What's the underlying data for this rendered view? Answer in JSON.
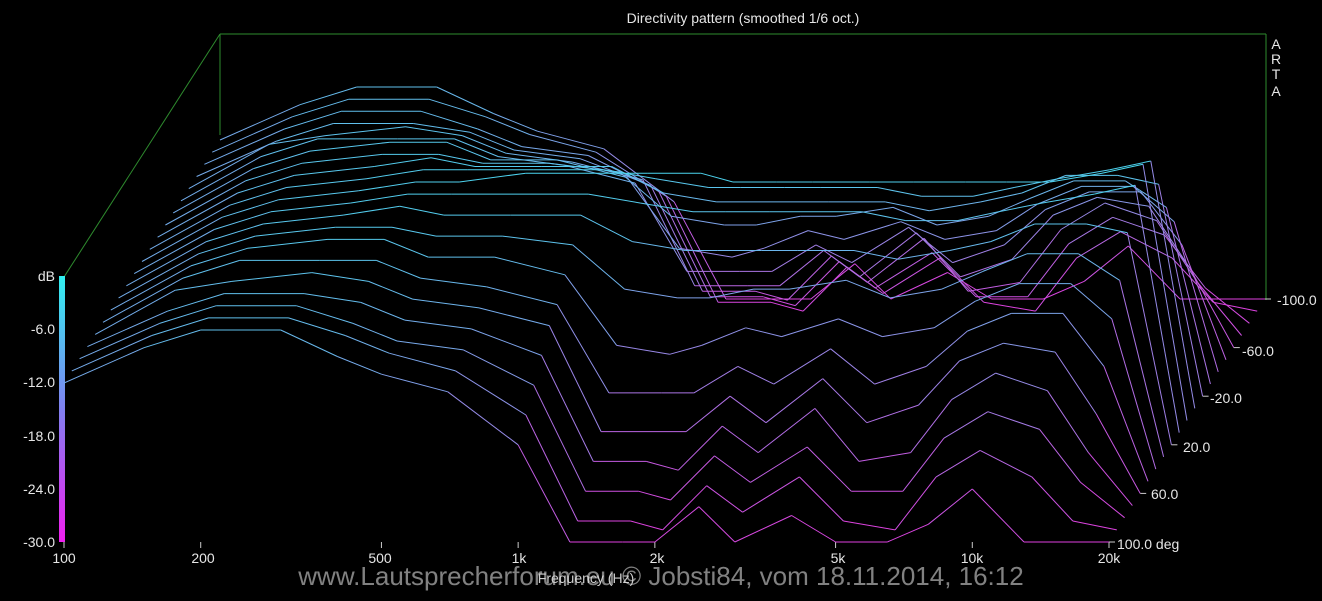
{
  "chart_data": {
    "type": "line",
    "title": "Directivity pattern (smoothed 1/6 oct.)",
    "xlabel": "Frequency (Hz)",
    "ylabel": "dB",
    "zlabel": "deg",
    "brand": [
      "A",
      "R",
      "T",
      "A"
    ],
    "x_scale": "log",
    "xlim": [
      100,
      20000
    ],
    "ylim": [
      -30,
      0
    ],
    "zlim": [
      -100,
      100
    ],
    "x_ticks": [
      "100",
      "200",
      "500",
      "1k",
      "2k",
      "5k",
      "10k",
      "20k"
    ],
    "x_tick_values": [
      100,
      200,
      500,
      1000,
      2000,
      5000,
      10000,
      20000
    ],
    "y_ticks": [
      "dB",
      "-6.0",
      "-12.0",
      "-18.0",
      "-24.0",
      "-30.0"
    ],
    "y_tick_values": [
      0,
      -6,
      -12,
      -18,
      -24,
      -30
    ],
    "z_ticks": [
      "-100.0",
      "-60.0",
      "-20.0",
      "20.0",
      "60.0",
      "100.0 deg"
    ],
    "z_tick_values": [
      -100,
      -60,
      -20,
      20,
      60,
      100
    ],
    "colors": {
      "background": "#000000",
      "frame": "#2e8b2e",
      "high": "#40e0f0",
      "low": "#e040e0",
      "text": "#e6e6e6"
    },
    "freqs": [
      100,
      150,
      200,
      300,
      400,
      500,
      700,
      1000,
      1300,
      1700,
      2000,
      2500,
      3000,
      4000,
      5000,
      6500,
      8000,
      10000,
      13000,
      16000,
      20000
    ],
    "series": [
      {
        "angle": 100,
        "values": [
          -12,
          -8,
          -6,
          -6,
          -9,
          -11,
          -13,
          -19,
          -30,
          -30,
          -30,
          -26,
          -30,
          -27,
          -30,
          -30,
          -28,
          -24,
          -30,
          -30,
          -30
        ]
      },
      {
        "angle": 90,
        "values": [
          -12,
          -8,
          -6,
          -6,
          -8,
          -10,
          -12,
          -17,
          -29,
          -29,
          -30,
          -25,
          -28,
          -24,
          -29,
          -30,
          -24,
          -21,
          -24,
          -29,
          -30
        ]
      },
      {
        "angle": 80,
        "values": [
          -12,
          -8,
          -6,
          -6,
          -8,
          -10,
          -11,
          -15,
          -27,
          -27,
          -28,
          -23,
          -26,
          -22,
          -27,
          -27,
          -21,
          -18,
          -20,
          -26,
          -30
        ]
      },
      {
        "angle": 70,
        "values": [
          -12,
          -8,
          -6,
          -6,
          -7,
          -9,
          -10,
          -13,
          -25,
          -25,
          -26,
          -21,
          -24,
          -19,
          -25,
          -24,
          -18,
          -15,
          -17,
          -24,
          -30
        ]
      },
      {
        "angle": 60,
        "values": [
          -12,
          -7,
          -6,
          -5,
          -6,
          -8,
          -9,
          -11,
          -23,
          -23,
          -23,
          -19,
          -22,
          -17,
          -22,
          -20,
          -15,
          -13,
          -14,
          -21,
          -30
        ]
      },
      {
        "angle": 50,
        "values": [
          -12,
          -7,
          -5,
          -5,
          -5,
          -7,
          -8,
          -10,
          -20,
          -20,
          -20,
          -17,
          -19,
          -15,
          -19,
          -17,
          -13,
          -11,
          -11,
          -17,
          -30
        ]
      },
      {
        "angle": 40,
        "values": [
          -12,
          -7,
          -5,
          -4,
          -4,
          -6,
          -6,
          -8,
          -16,
          -17,
          -16,
          -14,
          -15,
          -13,
          -15,
          -14,
          -11,
          -9,
          -9,
          -13,
          -30
        ]
      },
      {
        "angle": 30,
        "values": [
          -12,
          -7,
          -5,
          -4,
          -4,
          -5,
          -5,
          -6,
          -11,
          -12,
          -12,
          -11,
          -11,
          -10,
          -12,
          -11,
          -9,
          -7,
          -7,
          -10,
          -30
        ]
      },
      {
        "angle": 20,
        "values": [
          -12,
          -7,
          -5,
          -4,
          -3,
          -4,
          -4,
          -4,
          -7,
          -8,
          -8,
          -8,
          -8,
          -8,
          -9,
          -8,
          -7,
          -5,
          -5,
          -6,
          -30
        ]
      },
      {
        "angle": 10,
        "values": [
          -12,
          -7,
          -5,
          -4,
          -3,
          -3,
          -3,
          -3,
          -4,
          -5,
          -5,
          -5,
          -5,
          -5,
          -6,
          -6,
          -5,
          -4,
          -3,
          -2,
          -30
        ]
      },
      {
        "angle": 0,
        "values": [
          -12,
          -7,
          -5,
          -4,
          -3,
          -3,
          -2,
          -2,
          -2,
          -2,
          -3,
          -3,
          -3,
          -3,
          -3,
          -3,
          -3,
          -3,
          -2,
          -1,
          -30
        ]
      },
      {
        "angle": -10,
        "values": [
          -12,
          -7,
          -5,
          -4,
          -3,
          -3,
          -3,
          -3,
          -4,
          -5,
          -5,
          -5,
          -5,
          -5,
          -6,
          -6,
          -5,
          -4,
          -3,
          -2,
          -30
        ]
      },
      {
        "angle": -20,
        "values": [
          -12,
          -7,
          -5,
          -4,
          -3,
          -4,
          -4,
          -4,
          -7,
          -8,
          -8,
          -8,
          -8,
          -8,
          -9,
          -8,
          -7,
          -5,
          -5,
          -6,
          -30
        ]
      },
      {
        "angle": -30,
        "values": [
          -12,
          -7,
          -5,
          -4,
          -4,
          -5,
          -5,
          -6,
          -11,
          -12,
          -12,
          -11,
          -11,
          -10,
          -12,
          -11,
          -9,
          -7,
          -7,
          -10,
          -30
        ]
      },
      {
        "angle": -40,
        "values": [
          -12,
          -7,
          -5,
          -4,
          -4,
          -6,
          -6,
          -8,
          -16,
          -17,
          -16,
          -14,
          -15,
          -13,
          -15,
          -14,
          -11,
          -9,
          -9,
          -13,
          -30
        ]
      },
      {
        "angle": -50,
        "values": [
          -12,
          -7,
          -5,
          -5,
          -5,
          -7,
          -8,
          -10,
          -20,
          -20,
          -20,
          -17,
          -19,
          -15,
          -19,
          -17,
          -13,
          -11,
          -11,
          -17,
          -30
        ]
      },
      {
        "angle": -60,
        "values": [
          -12,
          -7,
          -6,
          -5,
          -6,
          -8,
          -9,
          -11,
          -23,
          -23,
          -23,
          -19,
          -22,
          -17,
          -22,
          -20,
          -15,
          -13,
          -14,
          -21,
          -30
        ]
      },
      {
        "angle": -70,
        "values": [
          -12,
          -8,
          -6,
          -6,
          -7,
          -9,
          -10,
          -13,
          -25,
          -25,
          -26,
          -21,
          -24,
          -19,
          -25,
          -24,
          -18,
          -15,
          -17,
          -24,
          -30
        ]
      },
      {
        "angle": -80,
        "values": [
          -12,
          -8,
          -6,
          -6,
          -8,
          -10,
          -11,
          -15,
          -27,
          -27,
          -28,
          -23,
          -26,
          -22,
          -27,
          -27,
          -21,
          -18,
          -20,
          -26,
          -30
        ]
      },
      {
        "angle": -90,
        "values": [
          -12,
          -8,
          -6,
          -6,
          -8,
          -10,
          -12,
          -17,
          -29,
          -29,
          -30,
          -25,
          -28,
          -24,
          -29,
          -30,
          -24,
          -21,
          -24,
          -29,
          -30
        ]
      },
      {
        "angle": -100,
        "values": [
          -12,
          -8,
          -6,
          -6,
          -9,
          -11,
          -13,
          -19,
          -30,
          -30,
          -30,
          -26,
          -30,
          -27,
          -30,
          -30,
          -28,
          -24,
          -30,
          -30,
          -30
        ]
      }
    ]
  },
  "watermark": "www.Lautsprecherforum.eu © Jobsti84, vom 18.11.2014, 16:12"
}
